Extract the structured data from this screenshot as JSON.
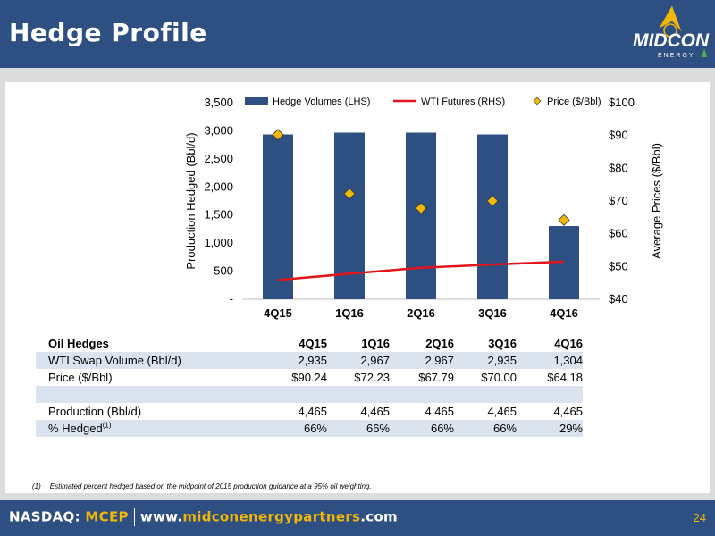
{
  "header": {
    "title": "Hedge Profile"
  },
  "logo": {
    "text": "MIDCON",
    "sub": "ENERGY"
  },
  "chart_data": {
    "type": "bar",
    "categories": [
      "4Q15",
      "1Q16",
      "2Q16",
      "3Q16",
      "4Q16"
    ],
    "series": [
      {
        "name": "Hedge Volumes (LHS)",
        "kind": "bar",
        "axis": "left",
        "values": [
          2935,
          2967,
          2967,
          2935,
          1304
        ],
        "color": "#2e4f82"
      },
      {
        "name": "WTI Futures (RHS)",
        "kind": "line",
        "axis": "right",
        "values": [
          45.9,
          47.8,
          49.6,
          50.6,
          51.5
        ],
        "color": "#e0161b"
      },
      {
        "name": "Price ($/Bbl)",
        "kind": "marker",
        "axis": "right",
        "values": [
          90.24,
          72.23,
          67.79,
          70.0,
          64.18
        ],
        "color": "#f2b705"
      }
    ],
    "ylabel": "Production Hedged (Bbl/d)",
    "ylabel_right": "Average Prices ($/Bbl)",
    "ylim": [
      0,
      3500
    ],
    "ylim_right": [
      40,
      100
    ],
    "yticks": [
      "-",
      "500",
      "1,000",
      "1,500",
      "2,000",
      "2,500",
      "3,000",
      "3,500"
    ],
    "yticks_right": [
      "$40",
      "$50",
      "$60",
      "$70",
      "$80",
      "$90",
      "$100"
    ],
    "legend_position": "top",
    "grid": false
  },
  "table": {
    "title": "Oil Hedges",
    "columns": [
      "4Q15",
      "1Q16",
      "2Q16",
      "3Q16",
      "4Q16"
    ],
    "rows": [
      {
        "label": "WTI Swap Volume (Bbl/d)",
        "values": [
          "2,935",
          "2,967",
          "2,967",
          "2,935",
          "1,304"
        ]
      },
      {
        "label": "Price ($/Bbl)",
        "values": [
          "$90.24",
          "$72.23",
          "$67.79",
          "$70.00",
          "$64.18"
        ]
      },
      {
        "label": "Production (Bbl/d)",
        "values": [
          "4,465",
          "4,465",
          "4,465",
          "4,465",
          "4,465"
        ]
      },
      {
        "label": "% Hedged",
        "sup": "(1)",
        "values": [
          "66%",
          "66%",
          "66%",
          "66%",
          "29%"
        ]
      }
    ]
  },
  "footnote": {
    "number": "(1)",
    "text": "Estimated percent hedged based on the midpoint of 2015 production guidance at a 95% oil weighting."
  },
  "footer": {
    "exchange": "NASDAQ:",
    "ticker": "MCEP",
    "url_prefix": "www.",
    "url_highlight": "midconenergypartners",
    "url_suffix": ".com",
    "page_number": "24"
  }
}
